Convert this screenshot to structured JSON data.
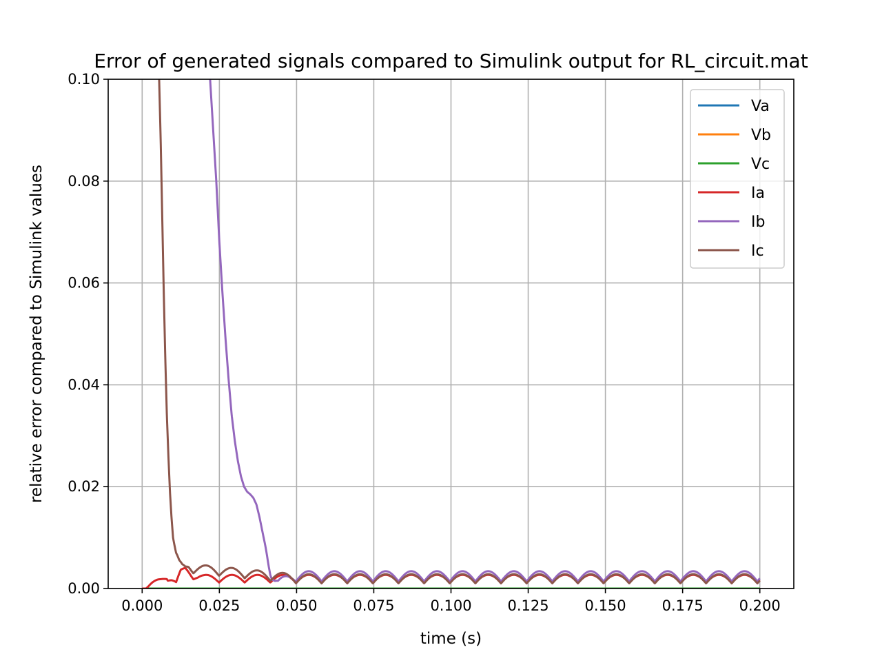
{
  "chart_data": {
    "type": "line",
    "title": "Error of generated signals compared to Simulink output for RL_circuit.mat",
    "xlabel": "time (s)",
    "ylabel": "relative error compared to Simulink values",
    "xlim": [
      -0.011,
      0.211
    ],
    "ylim": [
      0.0,
      0.1
    ],
    "xticks": [
      0.0,
      0.025,
      0.05,
      0.075,
      0.1,
      0.125,
      0.15,
      0.175,
      0.2
    ],
    "xtick_labels": [
      "0.000",
      "0.025",
      "0.050",
      "0.075",
      "0.100",
      "0.125",
      "0.150",
      "0.175",
      "0.200"
    ],
    "yticks": [
      0.0,
      0.02,
      0.04,
      0.06,
      0.08,
      0.1
    ],
    "ytick_labels": [
      "0.00",
      "0.02",
      "0.04",
      "0.06",
      "0.08",
      "0.10"
    ],
    "grid": true,
    "legend_position": "top-right",
    "series": [
      {
        "name": "Va",
        "color": "#1f77b4",
        "x": [
          0.0,
          0.2
        ],
        "y": [
          0.0,
          0.0
        ]
      },
      {
        "name": "Vb",
        "color": "#ff7f0e",
        "x": [
          0.0,
          0.2
        ],
        "y": [
          0.0,
          0.0
        ]
      },
      {
        "name": "Vc",
        "color": "#2ca02c",
        "x": [
          0.0,
          0.2
        ],
        "y": [
          0.0,
          0.0
        ]
      },
      {
        "name": "Ia",
        "color": "#d62728",
        "x": [
          0.0,
          0.002,
          0.004,
          0.006,
          0.008,
          0.0095,
          0.011,
          0.0125,
          0.014,
          0.016,
          0.018,
          0.02,
          0.05,
          0.1,
          0.15,
          0.2
        ],
        "y": [
          0.0,
          0.0002,
          0.0008,
          0.0015,
          0.0025,
          0.0018,
          0.0008,
          0.003,
          0.0036,
          0.0028,
          0.0022,
          0.002,
          0.002,
          0.002,
          0.002,
          0.002
        ],
        "oscillation": {
          "amplitude": 0.0015,
          "half_period": 0.0083
        }
      },
      {
        "name": "Ib",
        "color": "#9467bd",
        "x": [
          0.022,
          0.023,
          0.024,
          0.025,
          0.026,
          0.027,
          0.028,
          0.029,
          0.03,
          0.031,
          0.032,
          0.033,
          0.034,
          0.035,
          0.036,
          0.037,
          0.038,
          0.039,
          0.04,
          0.041,
          0.042,
          0.043,
          0.044,
          0.05,
          0.1,
          0.15,
          0.2
        ],
        "y": [
          0.1,
          0.09,
          0.08,
          0.068,
          0.058,
          0.049,
          0.041,
          0.034,
          0.029,
          0.025,
          0.022,
          0.02,
          0.019,
          0.0185,
          0.0178,
          0.0165,
          0.014,
          0.011,
          0.008,
          0.005,
          0.0025,
          0.0015,
          0.001,
          0.0025,
          0.0025,
          0.0025,
          0.0025
        ],
        "oscillation": {
          "amplitude": 0.002,
          "half_period": 0.0083
        }
      },
      {
        "name": "Ic",
        "color": "#8c564b",
        "x": [
          0.0055,
          0.006,
          0.0065,
          0.007,
          0.0075,
          0.008,
          0.0085,
          0.009,
          0.0095,
          0.01,
          0.011,
          0.012,
          0.013,
          0.014,
          0.015,
          0.016,
          0.05,
          0.1,
          0.15,
          0.2
        ],
        "y": [
          0.1,
          0.088,
          0.073,
          0.058,
          0.045,
          0.034,
          0.026,
          0.019,
          0.014,
          0.01,
          0.0065,
          0.0048,
          0.004,
          0.0038,
          0.0042,
          0.004,
          0.002,
          0.002,
          0.002,
          0.002
        ],
        "oscillation": {
          "amplitude": 0.0018,
          "half_period": 0.0083
        }
      }
    ]
  }
}
